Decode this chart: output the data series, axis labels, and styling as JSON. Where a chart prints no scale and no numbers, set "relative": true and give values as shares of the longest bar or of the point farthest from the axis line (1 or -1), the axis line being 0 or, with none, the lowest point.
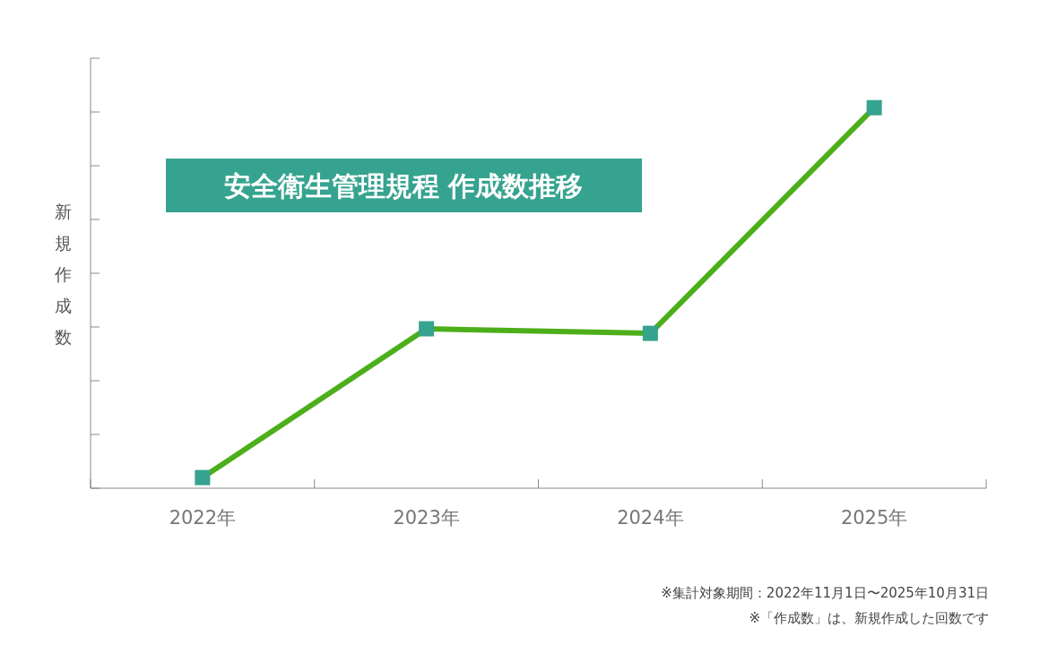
{
  "chart_data": {
    "type": "line",
    "title": "安全衛生管理規程 作成数推移",
    "ylabel": "新規作成数",
    "categories": [
      "2022年",
      "2023年",
      "2024年",
      "2025年"
    ],
    "relative": true,
    "series": [
      {
        "color": "#4caf1a",
        "values": [
          0.028,
          0.419,
          0.407,
          1
        ]
      }
    ],
    "marker": "square",
    "line_style": "solid",
    "annotations": [
      "※集計対象期間：2022年11月1日〜2025年10月31日",
      "※「作成数」は、新規作成した回数です"
    ]
  }
}
